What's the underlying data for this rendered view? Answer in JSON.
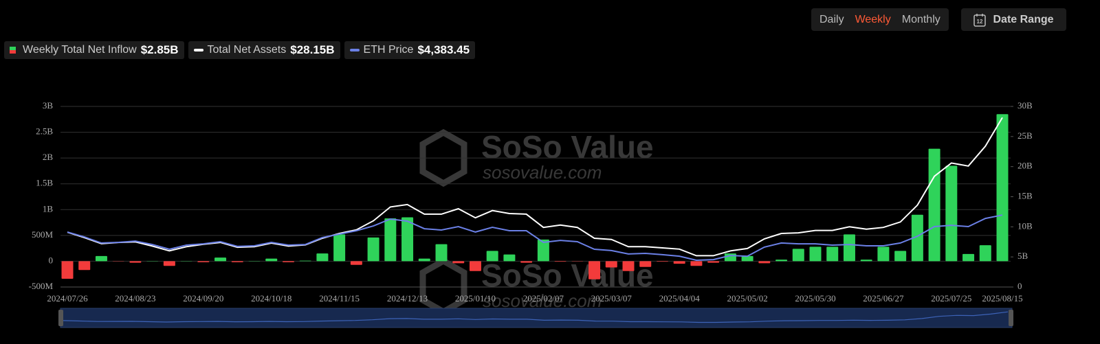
{
  "controls": {
    "periods": [
      "Daily",
      "Weekly",
      "Monthly"
    ],
    "active": 1,
    "date_range": "Date Range",
    "calendar_day": "12"
  },
  "watermark": {
    "name": "SoSo Value",
    "url": "sosovalue.com"
  },
  "chart_data": {
    "type": "bar",
    "categories": [
      "2024/07/26",
      null,
      null,
      null,
      "2024/08/23",
      null,
      null,
      null,
      "2024/09/20",
      null,
      null,
      null,
      "2024/10/18",
      null,
      null,
      null,
      "2024/11/15",
      null,
      null,
      null,
      "2024/12/13",
      null,
      null,
      null,
      "2025/01/10",
      null,
      null,
      null,
      "2025/02/07",
      null,
      null,
      null,
      "2025/03/07",
      null,
      null,
      null,
      "2025/04/04",
      null,
      null,
      null,
      "2025/05/02",
      null,
      null,
      null,
      "2025/05/30",
      null,
      null,
      null,
      "2025/06/27",
      null,
      null,
      null,
      "2025/07/25",
      null,
      null,
      "2025/08/15"
    ],
    "ylim": [
      -0.5,
      3
    ],
    "yticks": [
      {
        "value": -0.5,
        "label": "-500M"
      },
      0,
      {
        "value": 0.5,
        "label": "500M"
      },
      {
        "value": 1,
        "label": "1B"
      },
      {
        "value": 1.5,
        "label": "1.5B"
      },
      {
        "value": 2,
        "label": "2B"
      },
      {
        "value": 2.5,
        "label": "2.5B"
      },
      {
        "value": 3,
        "label": "3B"
      }
    ],
    "y2lim": [
      0,
      30
    ],
    "y2ticks": [
      0,
      {
        "value": 5,
        "label": "5B"
      },
      {
        "value": 10,
        "label": "10B"
      },
      {
        "value": 15,
        "label": "15B"
      },
      {
        "value": 20,
        "label": "20B"
      },
      {
        "value": 25,
        "label": "25B"
      },
      {
        "value": 30,
        "label": "30B"
      }
    ],
    "y3lim": [
      0,
      11000
    ],
    "grid": true,
    "series": [
      {
        "name": "Weekly Total Net Inflow",
        "type": "bar",
        "latest_label": "$2.85B",
        "color": "#2fd35a",
        "negative_color": "#f23b3b",
        "values": [
          -0.34,
          -0.17,
          0.1,
          -0.005,
          -0.03,
          0.005,
          -0.09,
          0.005,
          -0.02,
          0.07,
          -0.02,
          0.005,
          0.05,
          -0.02,
          0.01,
          0.15,
          0.52,
          -0.07,
          0.46,
          0.83,
          0.85,
          0.05,
          0.33,
          -0.04,
          -0.19,
          0.2,
          0.13,
          -0.03,
          0.42,
          -0.01,
          -0.005,
          -0.35,
          -0.12,
          -0.19,
          -0.11,
          -0.01,
          -0.05,
          -0.09,
          -0.03,
          0.15,
          0.1,
          -0.04,
          0.03,
          0.24,
          0.28,
          0.28,
          0.52,
          0.03,
          0.28,
          0.2,
          0.9,
          2.18,
          1.85,
          0.14,
          0.31,
          2.85
        ]
      },
      {
        "name": "Total Net Assets",
        "type": "line",
        "axis": "y2",
        "latest_label": "$28.15B",
        "color": "#ffffff",
        "values": [
          9.1,
          8.2,
          7.2,
          7.4,
          7.5,
          6.8,
          6.0,
          6.7,
          7.1,
          7.4,
          6.6,
          6.7,
          7.3,
          6.8,
          7.0,
          8.1,
          8.9,
          9.5,
          11.0,
          13.3,
          13.7,
          12.1,
          12.1,
          13.0,
          11.5,
          12.7,
          12.2,
          12.1,
          9.9,
          10.3,
          9.9,
          8.1,
          7.9,
          6.7,
          6.7,
          6.5,
          6.3,
          5.2,
          5.2,
          6.0,
          6.4,
          8.0,
          8.9,
          9.0,
          9.4,
          9.4,
          10.0,
          9.6,
          9.9,
          10.8,
          13.6,
          18.4,
          20.6,
          20.1,
          23.4,
          28.15
        ]
      },
      {
        "name": "ETH Price",
        "type": "line",
        "axis": "y3",
        "latest_label": "$4,383.45",
        "color": "#6b80e6",
        "values": [
          3350,
          3050,
          2680,
          2720,
          2800,
          2590,
          2300,
          2550,
          2630,
          2760,
          2470,
          2510,
          2720,
          2550,
          2590,
          3010,
          3220,
          3430,
          3720,
          4140,
          4010,
          3550,
          3470,
          3680,
          3350,
          3640,
          3430,
          3430,
          2720,
          2840,
          2760,
          2300,
          2220,
          2010,
          2050,
          1970,
          1880,
          1630,
          1670,
          1920,
          1880,
          2430,
          2680,
          2630,
          2630,
          2550,
          2590,
          2510,
          2510,
          2680,
          3090,
          3680,
          3760,
          3680,
          4180,
          4383.45
        ]
      }
    ]
  }
}
